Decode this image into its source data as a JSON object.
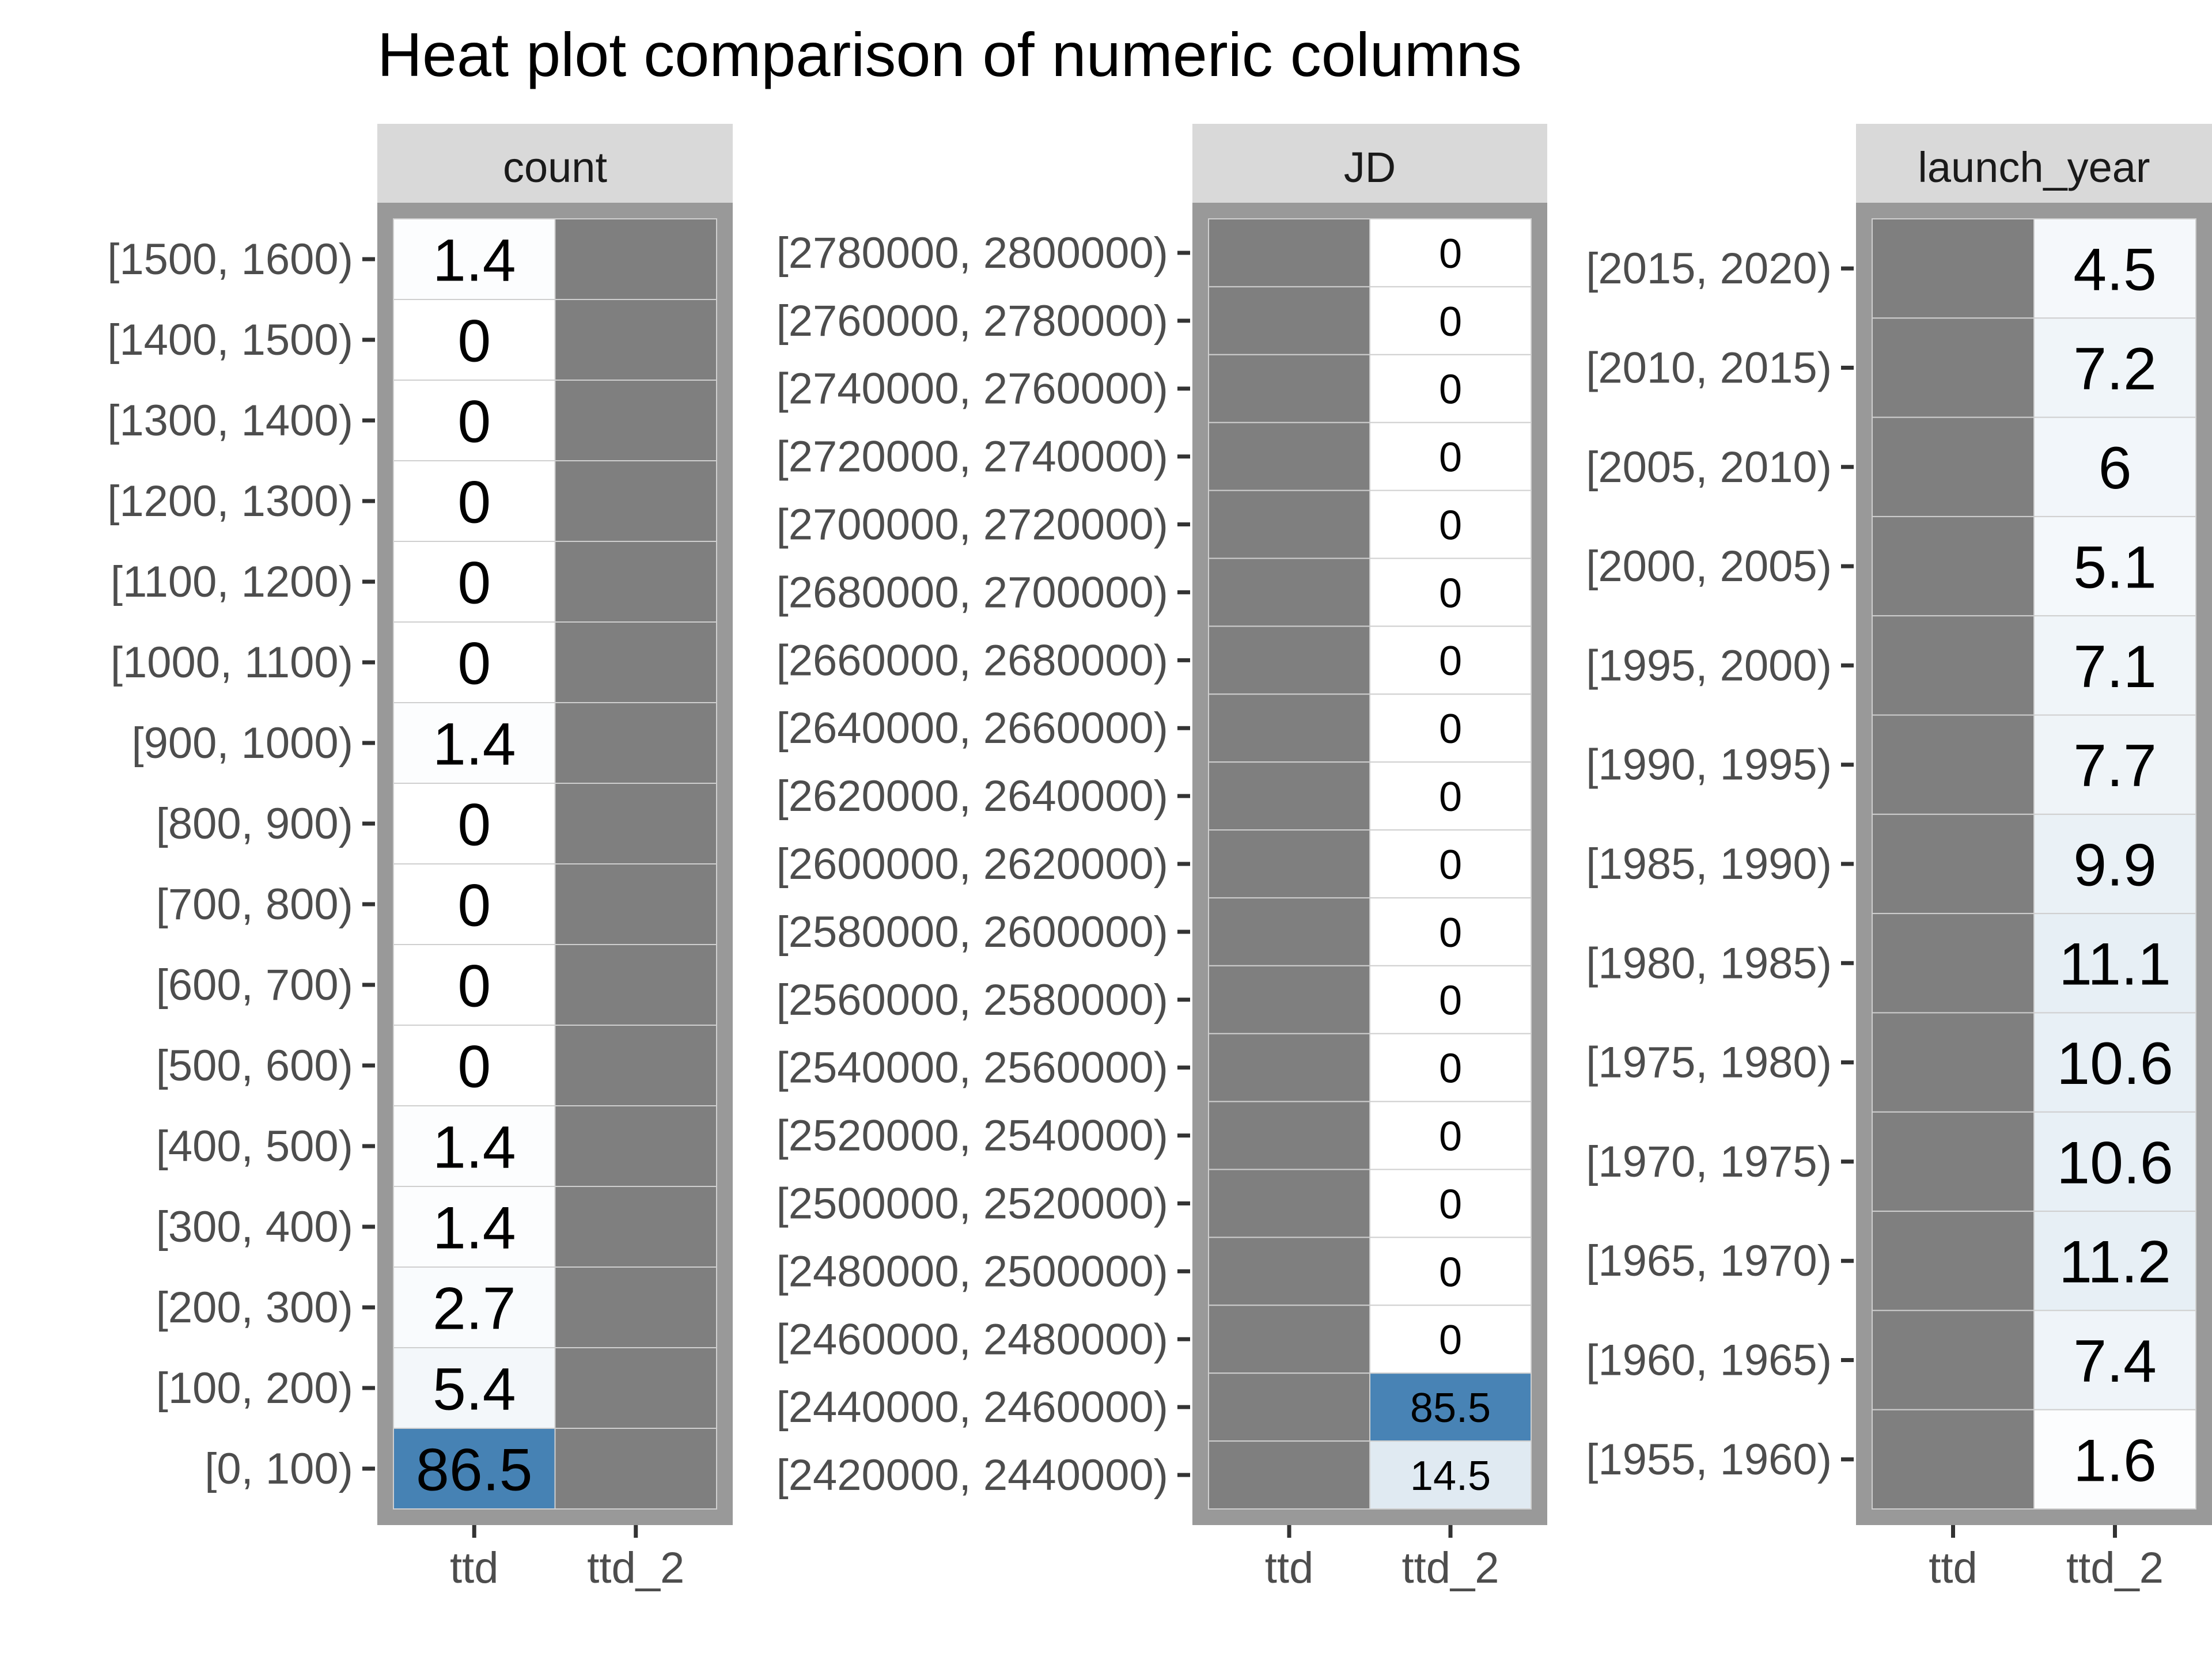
{
  "chart_data": {
    "type": "heatmap",
    "title": "Heat plot comparison of numeric columns",
    "x_categories": [
      "ttd",
      "ttd_2"
    ],
    "missing_color": "#7f7f7f",
    "fill_low": "#ffffff",
    "fill_high": "#4682b4",
    "panels": [
      {
        "name": "count",
        "bins": [
          "[1500, 1600)",
          "[1400, 1500)",
          "[1300, 1400)",
          "[1200, 1300)",
          "[1100, 1200)",
          "[1000, 1100)",
          "[900, 1000)",
          "[800, 900)",
          "[700, 800)",
          "[600, 700)",
          "[500, 600)",
          "[400, 500)",
          "[300, 400)",
          "[200, 300)",
          "[100, 200)",
          "[0, 100)"
        ],
        "ttd": [
          1.4,
          0,
          0,
          0,
          0,
          0,
          1.4,
          0,
          0,
          0,
          0,
          1.4,
          1.4,
          2.7,
          5.4,
          86.5
        ],
        "ttd_2": [
          null,
          null,
          null,
          null,
          null,
          null,
          null,
          null,
          null,
          null,
          null,
          null,
          null,
          null,
          null,
          null
        ]
      },
      {
        "name": "JD",
        "bins": [
          "[2780000, 2800000)",
          "[2760000, 2780000)",
          "[2740000, 2760000)",
          "[2720000, 2740000)",
          "[2700000, 2720000)",
          "[2680000, 2700000)",
          "[2660000, 2680000)",
          "[2640000, 2660000)",
          "[2620000, 2640000)",
          "[2600000, 2620000)",
          "[2580000, 2600000)",
          "[2560000, 2580000)",
          "[2540000, 2560000)",
          "[2520000, 2540000)",
          "[2500000, 2520000)",
          "[2480000, 2500000)",
          "[2460000, 2480000)",
          "[2440000, 2460000)",
          "[2420000, 2440000)"
        ],
        "ttd": [
          null,
          null,
          null,
          null,
          null,
          null,
          null,
          null,
          null,
          null,
          null,
          null,
          null,
          null,
          null,
          null,
          null,
          null,
          null
        ],
        "ttd_2": [
          0,
          0,
          0,
          0,
          0,
          0,
          0,
          0,
          0,
          0,
          0,
          0,
          0,
          0,
          0,
          0,
          0,
          85.5,
          14.5
        ]
      },
      {
        "name": "launch_year",
        "bins": [
          "[2015, 2020)",
          "[2010, 2015)",
          "[2005, 2010)",
          "[2000, 2005)",
          "[1995, 2000)",
          "[1990, 1995)",
          "[1985, 1990)",
          "[1980, 1985)",
          "[1975, 1980)",
          "[1970, 1975)",
          "[1965, 1970)",
          "[1960, 1965)",
          "[1955, 1960)"
        ],
        "ttd": [
          null,
          null,
          null,
          null,
          null,
          null,
          null,
          null,
          null,
          null,
          null,
          null,
          null
        ],
        "ttd_2": [
          4.5,
          7.2,
          6,
          5.1,
          7.1,
          7.7,
          9.9,
          11.1,
          10.6,
          10.6,
          11.2,
          7.4,
          1.6
        ]
      }
    ]
  }
}
